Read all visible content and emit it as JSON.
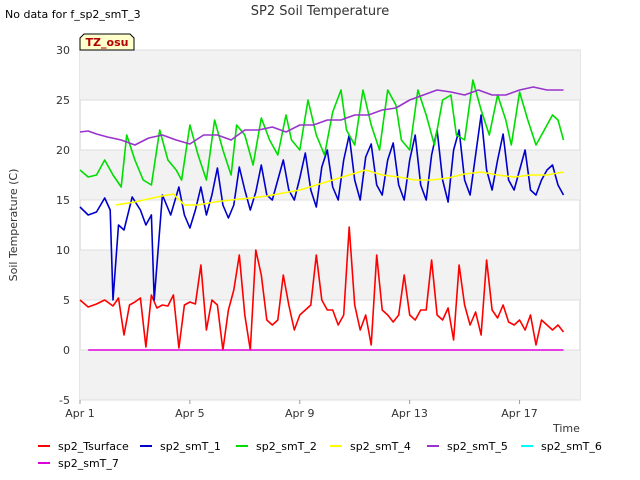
{
  "nodata_text": "No data for f_sp2_smT_3",
  "badge": "TZ_osu",
  "chart_data": {
    "type": "line",
    "title": "SP2 Soil Temperature",
    "xlabel": "Time",
    "ylabel": "Soil Temperature (C)",
    "xlim": [
      0,
      18.2
    ],
    "ylim": [
      -5,
      30
    ],
    "x_ticks": [
      {
        "value": 0,
        "label": "Apr 1"
      },
      {
        "value": 4,
        "label": "Apr 5"
      },
      {
        "value": 8,
        "label": "Apr 9"
      },
      {
        "value": 12,
        "label": "Apr 13"
      },
      {
        "value": 16,
        "label": "Apr 17"
      }
    ],
    "y_ticks": [
      -5,
      0,
      5,
      10,
      15,
      20,
      25,
      30
    ],
    "grid": true,
    "legend_position": "bottom",
    "series": [
      {
        "name": "sp2_Tsurface",
        "color": "#ff0000",
        "x": [
          0.0,
          0.3,
          0.6,
          0.9,
          1.2,
          1.4,
          1.6,
          1.8,
          2.0,
          2.2,
          2.4,
          2.6,
          2.8,
          3.0,
          3.2,
          3.4,
          3.6,
          3.8,
          4.0,
          4.2,
          4.4,
          4.6,
          4.8,
          5.0,
          5.2,
          5.4,
          5.6,
          5.8,
          6.0,
          6.2,
          6.4,
          6.6,
          6.8,
          7.0,
          7.2,
          7.4,
          7.6,
          7.8,
          8.0,
          8.2,
          8.4,
          8.6,
          8.8,
          9.0,
          9.2,
          9.4,
          9.6,
          9.8,
          10.0,
          10.2,
          10.4,
          10.6,
          10.8,
          11.0,
          11.2,
          11.4,
          11.6,
          11.8,
          12.0,
          12.2,
          12.4,
          12.6,
          12.8,
          13.0,
          13.2,
          13.4,
          13.6,
          13.8,
          14.0,
          14.2,
          14.4,
          14.6,
          14.8,
          15.0,
          15.2,
          15.4,
          15.6,
          15.8,
          16.0,
          16.2,
          16.4,
          16.6,
          16.8,
          17.0,
          17.2,
          17.4,
          17.6
        ],
        "y": [
          5.0,
          4.3,
          4.6,
          5.0,
          4.4,
          5.2,
          1.5,
          4.5,
          4.8,
          5.2,
          0.3,
          5.5,
          4.2,
          4.5,
          4.4,
          5.5,
          0.2,
          4.5,
          4.8,
          4.6,
          8.5,
          2.0,
          5.0,
          4.5,
          0.0,
          4.0,
          6.0,
          9.5,
          3.5,
          0.0,
          10.0,
          7.5,
          3.0,
          2.5,
          3.0,
          7.5,
          4.5,
          2.0,
          3.5,
          4.0,
          4.5,
          9.5,
          5.0,
          4.0,
          4.0,
          2.5,
          3.5,
          12.3,
          4.5,
          2.0,
          3.5,
          0.5,
          9.5,
          4.0,
          3.5,
          2.8,
          3.5,
          7.5,
          3.5,
          3.0,
          4.0,
          4.0,
          9.0,
          3.5,
          3.0,
          4.2,
          1.0,
          8.5,
          4.5,
          2.5,
          3.8,
          1.5,
          9.0,
          4.0,
          3.2,
          4.5,
          2.8,
          2.5,
          3.0,
          2.0,
          3.5,
          0.5,
          3.0,
          2.5,
          2.0,
          2.5,
          1.8
        ]
      },
      {
        "name": "sp2_smT_1",
        "color": "#0000cc",
        "x": [
          0.0,
          0.3,
          0.6,
          0.9,
          1.1,
          1.2,
          1.4,
          1.6,
          1.9,
          2.2,
          2.4,
          2.6,
          2.7,
          3.0,
          3.3,
          3.6,
          3.8,
          4.0,
          4.2,
          4.4,
          4.6,
          4.8,
          5.0,
          5.2,
          5.4,
          5.6,
          5.8,
          6.0,
          6.2,
          6.4,
          6.6,
          6.8,
          7.0,
          7.2,
          7.4,
          7.6,
          7.8,
          8.0,
          8.2,
          8.4,
          8.6,
          8.8,
          9.0,
          9.2,
          9.4,
          9.6,
          9.8,
          10.0,
          10.2,
          10.4,
          10.6,
          10.8,
          11.0,
          11.2,
          11.4,
          11.6,
          11.8,
          12.0,
          12.2,
          12.4,
          12.6,
          12.8,
          13.0,
          13.2,
          13.4,
          13.6,
          13.8,
          14.0,
          14.2,
          14.4,
          14.6,
          14.8,
          15.0,
          15.2,
          15.4,
          15.6,
          15.8,
          16.0,
          16.2,
          16.4,
          16.6,
          16.8,
          17.0,
          17.2,
          17.4,
          17.6
        ],
        "y": [
          14.3,
          13.5,
          13.8,
          15.2,
          14.0,
          5.0,
          12.5,
          12.0,
          15.3,
          14.0,
          12.5,
          13.5,
          5.0,
          15.5,
          13.5,
          16.3,
          13.5,
          12.2,
          14.0,
          16.3,
          13.5,
          15.5,
          18.2,
          14.5,
          13.2,
          14.5,
          18.3,
          16.0,
          14.0,
          15.8,
          18.5,
          15.5,
          15.0,
          17.0,
          19.0,
          16.0,
          15.0,
          17.2,
          19.7,
          16.0,
          14.3,
          18.3,
          20.0,
          16.3,
          15.0,
          19.0,
          21.5,
          17.0,
          15.0,
          19.3,
          20.6,
          16.5,
          15.5,
          19.0,
          20.7,
          16.5,
          15.0,
          19.0,
          21.5,
          16.5,
          15.0,
          19.5,
          22.0,
          17.0,
          14.8,
          20.0,
          22.0,
          17.0,
          15.5,
          19.5,
          23.5,
          18.0,
          16.0,
          19.0,
          21.6,
          17.0,
          16.0,
          18.0,
          20.0,
          16.0,
          15.5,
          17.0,
          18.0,
          18.5,
          16.5,
          15.5
        ]
      },
      {
        "name": "sp2_smT_2",
        "color": "#00dd00",
        "x": [
          0.0,
          0.3,
          0.6,
          0.9,
          1.2,
          1.5,
          1.7,
          2.0,
          2.3,
          2.6,
          2.9,
          3.2,
          3.5,
          3.7,
          4.0,
          4.3,
          4.6,
          4.9,
          5.2,
          5.5,
          5.7,
          6.0,
          6.3,
          6.6,
          6.9,
          7.2,
          7.5,
          7.7,
          8.0,
          8.3,
          8.6,
          8.9,
          9.2,
          9.5,
          9.7,
          10.0,
          10.3,
          10.6,
          10.9,
          11.2,
          11.5,
          11.7,
          12.0,
          12.3,
          12.6,
          12.9,
          13.2,
          13.5,
          13.7,
          14.0,
          14.3,
          14.6,
          14.9,
          15.2,
          15.5,
          15.7,
          16.0,
          16.3,
          16.6,
          16.9,
          17.2,
          17.4,
          17.6
        ],
        "y": [
          18.0,
          17.3,
          17.5,
          19.0,
          17.5,
          16.3,
          21.5,
          19.0,
          17.0,
          16.5,
          22.0,
          19.0,
          18.0,
          17.0,
          22.5,
          19.5,
          17.0,
          23.0,
          20.0,
          17.5,
          22.5,
          21.5,
          18.5,
          23.2,
          21.0,
          19.5,
          23.5,
          21.0,
          20.0,
          25.0,
          21.5,
          19.5,
          23.8,
          26.0,
          22.0,
          20.5,
          26.0,
          22.5,
          20.0,
          26.0,
          24.5,
          21.0,
          20.0,
          26.0,
          23.5,
          20.5,
          25.0,
          25.5,
          21.5,
          21.0,
          27.0,
          24.0,
          21.5,
          25.5,
          23.0,
          20.5,
          25.8,
          23.0,
          20.5,
          22.0,
          23.5,
          23.0,
          21.0
        ]
      },
      {
        "name": "sp2_smT_4",
        "color": "#ffff00",
        "x": [
          1.3,
          2.0,
          2.8,
          3.4,
          3.8,
          4.3,
          4.9,
          5.5,
          6.2,
          6.8,
          7.4,
          8.0,
          8.6,
          9.2,
          9.8,
          10.4,
          11.0,
          11.6,
          12.2,
          12.8,
          13.4,
          14.0,
          14.6,
          15.2,
          15.8,
          16.4,
          17.0,
          17.6
        ],
        "y": [
          14.5,
          14.8,
          15.3,
          15.6,
          14.5,
          14.5,
          14.8,
          15.0,
          15.2,
          15.4,
          15.7,
          16.0,
          16.5,
          17.0,
          17.5,
          18.0,
          17.5,
          17.3,
          17.0,
          17.0,
          17.2,
          17.6,
          17.8,
          17.5,
          17.3,
          17.5,
          17.5,
          17.8
        ]
      },
      {
        "name": "sp2_smT_5",
        "color": "#9933cc",
        "x": [
          0.0,
          0.3,
          0.6,
          1.0,
          1.5,
          2.0,
          2.5,
          3.0,
          3.5,
          4.0,
          4.5,
          5.0,
          5.5,
          6.0,
          6.5,
          7.0,
          7.5,
          8.0,
          8.5,
          9.0,
          9.5,
          10.0,
          10.5,
          11.0,
          11.5,
          12.0,
          12.5,
          13.0,
          13.5,
          14.0,
          14.5,
          15.0,
          15.5,
          16.0,
          16.5,
          17.0,
          17.6
        ],
        "y": [
          21.8,
          21.9,
          21.6,
          21.3,
          21.0,
          20.5,
          21.2,
          21.5,
          21.0,
          20.6,
          21.5,
          21.5,
          21.0,
          22.0,
          22.0,
          22.3,
          21.8,
          22.5,
          22.5,
          23.0,
          23.0,
          23.5,
          23.5,
          24.0,
          24.2,
          25.0,
          25.5,
          26.0,
          25.8,
          25.5,
          26.0,
          25.5,
          25.5,
          26.0,
          26.3,
          26.0,
          26.0
        ]
      },
      {
        "name": "sp2_smT_6",
        "color": "#00ffff",
        "x": [],
        "y": []
      },
      {
        "name": "sp2_smT_7",
        "color": "#dd00dd",
        "x": [
          0.3,
          17.6
        ],
        "y": [
          0.0,
          0.0
        ]
      }
    ]
  }
}
